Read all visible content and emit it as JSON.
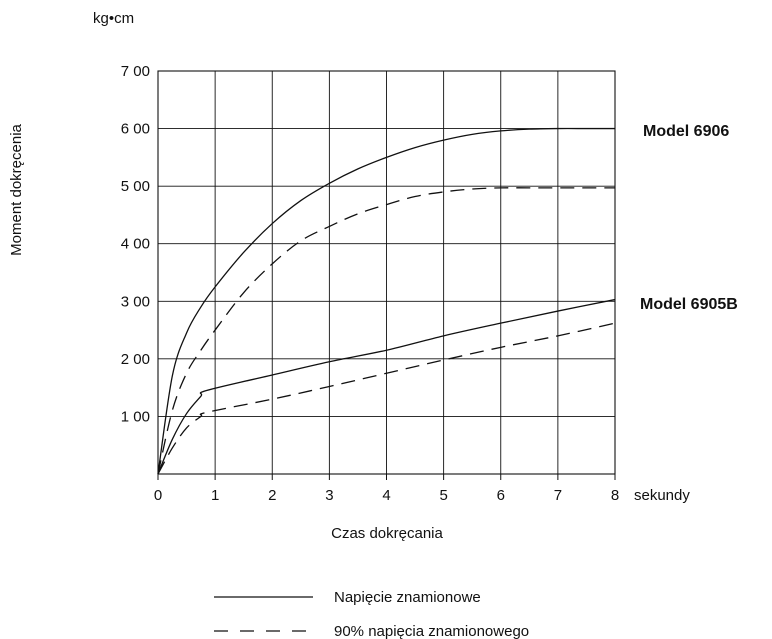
{
  "chart_data": {
    "type": "line",
    "title": "",
    "xlabel": "Czas dokręcania",
    "x_unit": "sekundy",
    "ylabel": "Moment dokręcenia",
    "y_unit": "kg•cm",
    "xlim": [
      0,
      8
    ],
    "ylim": [
      0,
      700
    ],
    "grid": true,
    "x_ticks": [
      "0",
      "1",
      "2",
      "3",
      "4",
      "5",
      "6",
      "7",
      "8"
    ],
    "y_ticks": [
      "1 00",
      "2 00",
      "3 00",
      "4 00",
      "5 00",
      "6 00",
      "7 00"
    ],
    "y_tick_values": [
      100,
      200,
      300,
      400,
      500,
      600,
      700
    ],
    "series": [
      {
        "model": "Model 6906",
        "voltage": "Napięcie znamionowe",
        "style": "solid",
        "x": [
          0,
          0.25,
          0.5,
          0.75,
          1,
          1.5,
          2,
          2.5,
          3,
          3.5,
          4,
          4.5,
          5,
          5.5,
          6,
          6.5,
          7,
          7.5,
          8
        ],
        "y": [
          0,
          170,
          245,
          290,
          325,
          385,
          435,
          475,
          505,
          530,
          550,
          567,
          580,
          590,
          596,
          599,
          600,
          600,
          600
        ]
      },
      {
        "model": "Model 6906",
        "voltage": "90% napięcia znamionowego",
        "style": "dashed",
        "x": [
          0,
          0.25,
          0.5,
          0.75,
          1,
          1.5,
          2,
          2.5,
          3,
          3.5,
          4,
          4.5,
          5,
          5.5,
          6,
          6.5,
          7,
          7.5,
          8
        ],
        "y": [
          0,
          110,
          175,
          215,
          250,
          315,
          365,
          405,
          430,
          452,
          468,
          482,
          490,
          495,
          497,
          497,
          497,
          497,
          497
        ]
      },
      {
        "model": "Model 6905B",
        "voltage": "Napięcie znamionowe",
        "style": "solid",
        "x": [
          0,
          0.25,
          0.5,
          0.75,
          0.85,
          2,
          3,
          4,
          5,
          6,
          7,
          8
        ],
        "y": [
          0,
          60,
          105,
          135,
          145,
          172,
          195,
          215,
          240,
          262,
          283,
          303
        ]
      },
      {
        "model": "Model 6905B",
        "voltage": "90% napięcia znamionowego",
        "style": "dashed",
        "x": [
          0,
          0.25,
          0.5,
          0.75,
          0.85,
          2,
          3,
          4,
          5,
          6,
          7,
          8
        ],
        "y": [
          0,
          45,
          80,
          100,
          107,
          130,
          152,
          175,
          198,
          220,
          240,
          262
        ]
      }
    ],
    "model_labels": [
      "Model 6906",
      "Model 6905B"
    ],
    "legend": [
      {
        "label": "Napięcie znamionowe",
        "style": "solid"
      },
      {
        "label": "90% napięcia znamionowego",
        "style": "dashed"
      }
    ],
    "legend_placement": "bottom-center"
  }
}
